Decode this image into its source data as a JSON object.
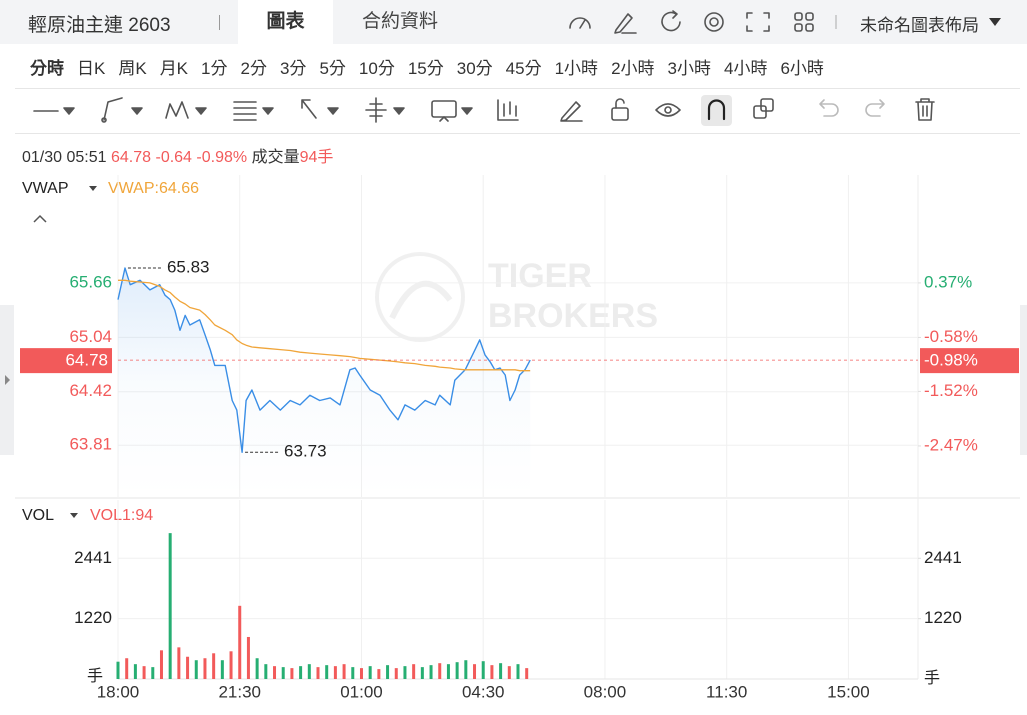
{
  "header": {
    "title": "輕原油主連 2603",
    "tabs": [
      "圖表",
      "合約資料"
    ],
    "layout": "未命名圖表佈局"
  },
  "periods": [
    "分時",
    "日K",
    "周K",
    "月K",
    "1分",
    "2分",
    "3分",
    "5分",
    "10分",
    "15分",
    "30分",
    "45分",
    "1小時",
    "2小時",
    "3小時",
    "4小時",
    "6小時"
  ],
  "quote": {
    "time": "01/30 05:51",
    "price": "64.78",
    "change": "-0.64",
    "change_pct": "-0.98%",
    "volume_label": "成交量",
    "volume": "94手"
  },
  "chart_data": [
    {
      "type": "line",
      "legend_value": "VWAP:64.66",
      "watermark": [
        "TIGER",
        "BROKERS"
      ],
      "up_color": "#26ae72",
      "down_color": "#f25a5a",
      "grid": true,
      "xlim": [
        0,
        1380
      ],
      "xticks": [
        {
          "value": 0,
          "label": "18:00"
        },
        {
          "value": 210,
          "label": "21:30"
        },
        {
          "value": 420,
          "label": "01:00"
        },
        {
          "value": 630,
          "label": "04:30"
        },
        {
          "value": 840,
          "label": "08:00"
        },
        {
          "value": 1050,
          "label": "11:30"
        },
        {
          "value": 1260,
          "label": "15:00"
        }
      ],
      "ylim": [
        63.22,
        66.89
      ],
      "yticks": [
        65.66,
        65.04,
        64.42,
        63.81
      ],
      "y2lim": [
        -3.36,
        2.25
      ],
      "y2ticks": [
        {
          "value": 0.37,
          "label": "0.37%"
        },
        {
          "value": -0.58,
          "label": "-0.58%"
        },
        {
          "value": -1.52,
          "label": "-1.52%"
        },
        {
          "value": -2.47,
          "label": "-2.47%"
        }
      ],
      "x": [
        0,
        12,
        21,
        38,
        55,
        72,
        81,
        90,
        98,
        107,
        116,
        124,
        141,
        150,
        159,
        167,
        185,
        197,
        205,
        214,
        221,
        231,
        245,
        262,
        280,
        297,
        314,
        331,
        348,
        366,
        383,
        400,
        409,
        417,
        435,
        452,
        469,
        483,
        495,
        512,
        530,
        547,
        555,
        573,
        581,
        599,
        616,
        624,
        633,
        642,
        650,
        659,
        668,
        676,
        685,
        693,
        702,
        711
      ],
      "series": [
        {
          "color": "#3a8ee6",
          "fill": true,
          "values": [
            65.47,
            65.83,
            65.64,
            65.69,
            65.58,
            65.64,
            65.52,
            65.47,
            65.35,
            65.12,
            65.29,
            65.18,
            65.24,
            65.07,
            64.9,
            64.72,
            64.72,
            64.32,
            64.21,
            63.73,
            64.32,
            64.44,
            64.21,
            64.32,
            64.21,
            64.32,
            64.27,
            64.38,
            64.32,
            64.35,
            64.27,
            64.67,
            64.69,
            64.61,
            64.44,
            64.38,
            64.21,
            64.1,
            64.27,
            64.21,
            64.32,
            64.27,
            64.38,
            64.27,
            64.55,
            64.67,
            64.9,
            65.01,
            64.84,
            64.76,
            64.67,
            64.69,
            64.61,
            64.32,
            64.44,
            64.61,
            64.67,
            64.78
          ]
        },
        {
          "name": "VWAP",
          "color": "#f0a53a",
          "fill": false,
          "values": [
            65.69,
            65.69,
            65.68,
            65.67,
            65.66,
            65.62,
            65.58,
            65.55,
            65.5,
            65.45,
            65.42,
            65.38,
            65.35,
            65.3,
            65.24,
            65.18,
            65.12,
            65.07,
            65.01,
            64.97,
            64.95,
            64.93,
            64.92,
            64.91,
            64.9,
            64.89,
            64.87,
            64.86,
            64.85,
            64.84,
            64.83,
            64.82,
            64.81,
            64.8,
            64.79,
            64.78,
            64.77,
            64.76,
            64.75,
            64.74,
            64.72,
            64.71,
            64.7,
            64.69,
            64.68,
            64.67,
            64.67,
            64.67,
            64.67,
            64.67,
            64.67,
            64.67,
            64.67,
            64.67,
            64.67,
            64.66,
            64.66,
            64.66
          ]
        }
      ],
      "annotations": [
        {
          "x": 12,
          "value": 65.83
        },
        {
          "x": 214,
          "value": 63.73
        }
      ],
      "last": {
        "value": 64.78,
        "pct": {
          "value": -0.98,
          "label": "-0.98%"
        }
      }
    },
    {
      "type": "bar",
      "legend": "VOL",
      "legend_value": "VOL1:94",
      "unit": "手",
      "ylim": [
        0,
        3620
      ],
      "yticks": [
        1220,
        2441
      ],
      "y2ticks": [
        1220,
        2441
      ],
      "x": [
        0,
        15,
        30,
        45,
        60,
        75,
        90,
        105,
        120,
        135,
        150,
        165,
        180,
        195,
        210,
        225,
        240,
        255,
        270,
        285,
        300,
        315,
        330,
        345,
        360,
        375,
        390,
        405,
        420,
        435,
        450,
        465,
        480,
        495,
        510,
        525,
        540,
        555,
        570,
        585,
        600,
        615,
        630,
        645,
        660,
        675,
        690,
        705
      ],
      "values": [
        350,
        420,
        300,
        260,
        240,
        580,
        2950,
        640,
        450,
        380,
        420,
        520,
        380,
        560,
        1480,
        850,
        420,
        300,
        260,
        240,
        220,
        260,
        300,
        240,
        280,
        260,
        300,
        240,
        220,
        260,
        200,
        280,
        220,
        260,
        300,
        240,
        280,
        320,
        300,
        340,
        380,
        300,
        360,
        280,
        320,
        260,
        300,
        220
      ],
      "colors": [
        "#26ae72",
        "#f25a5a",
        "#26ae72",
        "#f25a5a",
        "#26ae72",
        "#f25a5a",
        "#26ae72",
        "#f25a5a",
        "#f25a5a",
        "#26ae72",
        "#f25a5a",
        "#f25a5a",
        "#26ae72",
        "#f25a5a",
        "#f25a5a",
        "#f25a5a",
        "#26ae72",
        "#26ae72",
        "#f25a5a",
        "#26ae72",
        "#f25a5a",
        "#26ae72",
        "#26ae72",
        "#f25a5a",
        "#26ae72",
        "#f25a5a",
        "#f25a5a",
        "#26ae72",
        "#f25a5a",
        "#26ae72",
        "#f25a5a",
        "#26ae72",
        "#f25a5a",
        "#26ae72",
        "#f25a5a",
        "#26ae72",
        "#26ae72",
        "#f25a5a",
        "#26ae72",
        "#26ae72",
        "#26ae72",
        "#f25a5a",
        "#26ae72",
        "#f25a5a",
        "#26ae72",
        "#f25a5a",
        "#26ae72",
        "#f25a5a"
      ]
    }
  ]
}
